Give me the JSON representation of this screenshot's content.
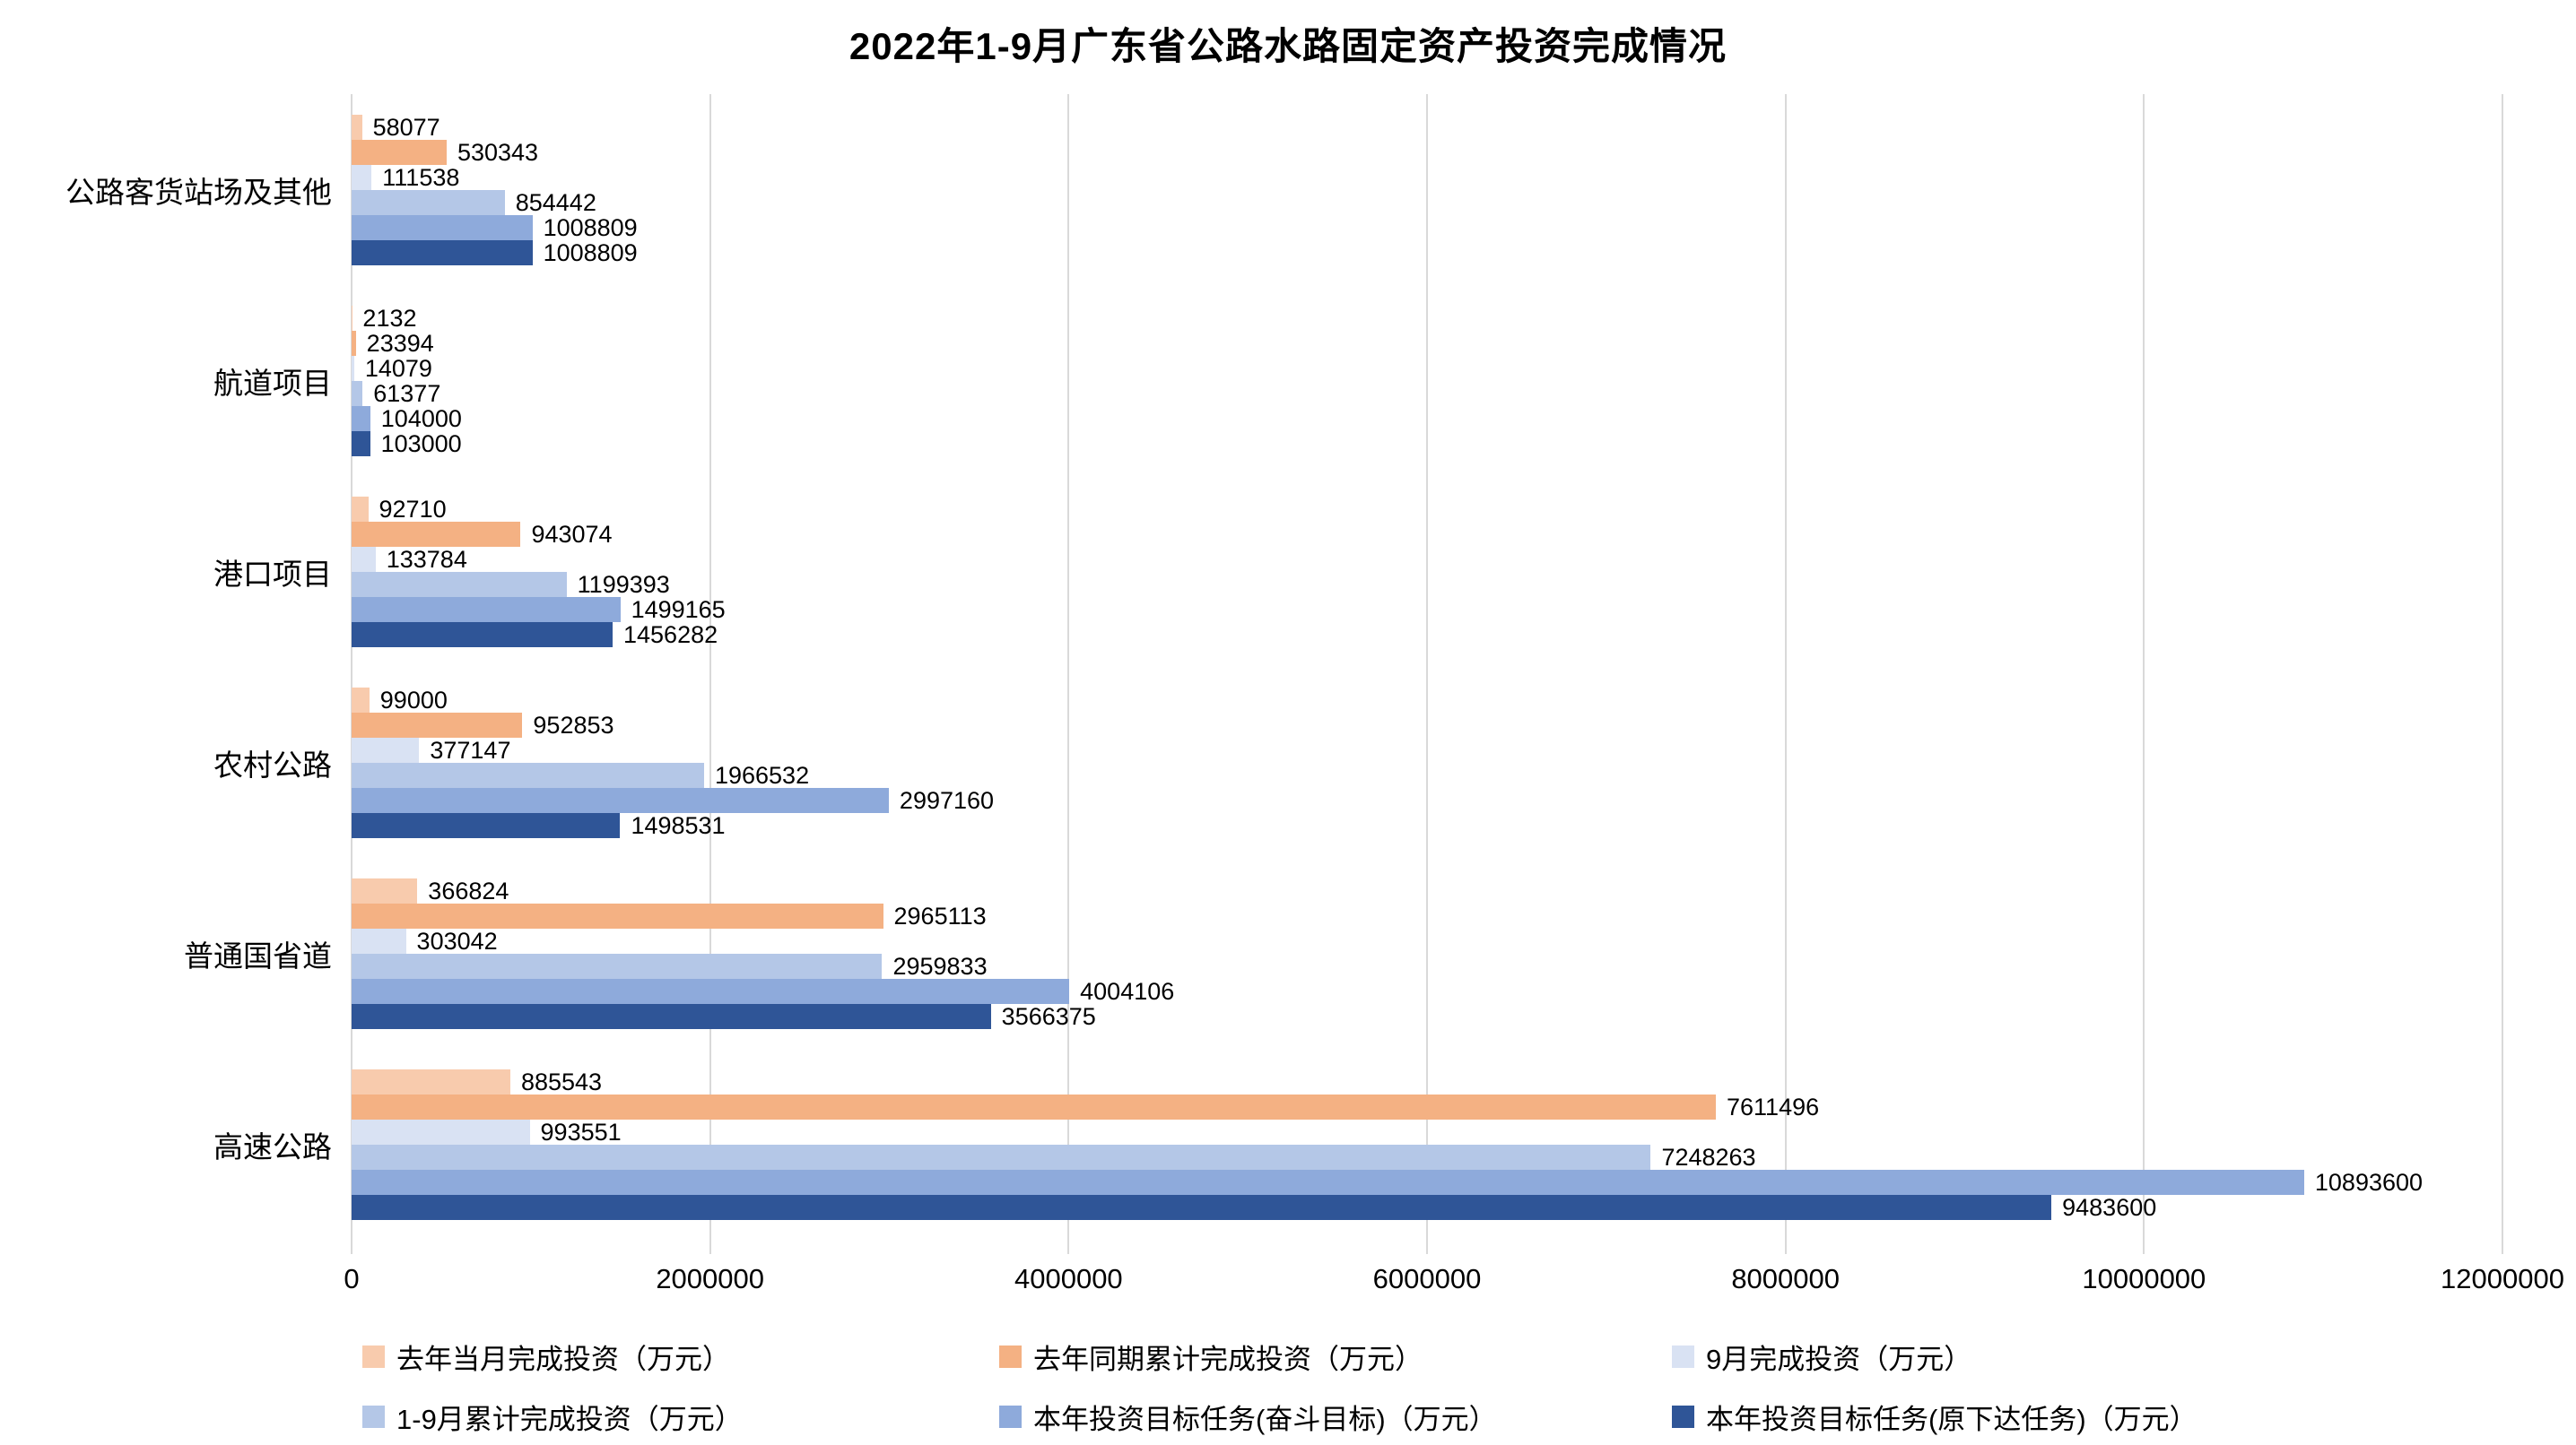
{
  "title": "2022年1-9月广东省公路水路固定资产投资完成情况",
  "chart_data": {
    "type": "bar",
    "orientation": "horizontal",
    "title": "2022年1-9月广东省公路水路固定资产投资完成情况",
    "categories": [
      "公路客货站场及其他",
      "航道项目",
      "港口项目",
      "农村公路",
      "普通国省道",
      "高速公路"
    ],
    "series": [
      {
        "name": "去年当月完成投资（万元）",
        "color": "#F8CBAD",
        "values": [
          58077,
          2132,
          92710,
          99000,
          366824,
          885543
        ]
      },
      {
        "name": "去年同期累计完成投资（万元）",
        "color": "#F4B183",
        "values": [
          530343,
          23394,
          943074,
          952853,
          2965113,
          7611496
        ]
      },
      {
        "name": "9月完成投资（万元）",
        "color": "#D9E2F3",
        "values": [
          111538,
          14079,
          133784,
          377147,
          303042,
          993551
        ]
      },
      {
        "name": "1-9月累计完成投资（万元）",
        "color": "#B4C7E7",
        "values": [
          854442,
          61377,
          1199393,
          1966532,
          2959833,
          7248263
        ]
      },
      {
        "name": "本年投资目标任务(奋斗目标)（万元）",
        "color": "#8EAADB",
        "values": [
          1008809,
          104000,
          1499165,
          2997160,
          4004106,
          10893600
        ]
      },
      {
        "name": "本年投资目标任务(原下达任务)（万元）",
        "color": "#2F5597",
        "values": [
          1008809,
          103000,
          1456282,
          1498531,
          3566375,
          9483600
        ]
      }
    ],
    "xlim": [
      0,
      12000000
    ],
    "x_ticks": [
      0,
      2000000,
      4000000,
      6000000,
      8000000,
      10000000,
      12000000
    ],
    "x_tick_labels": [
      "0",
      "2000000",
      "4000000",
      "6000000",
      "8000000",
      "10000000",
      "12000000"
    ],
    "grid": true,
    "gridline_color": "#D9D9D9",
    "legend_position": "bottom",
    "value_labels": true
  }
}
